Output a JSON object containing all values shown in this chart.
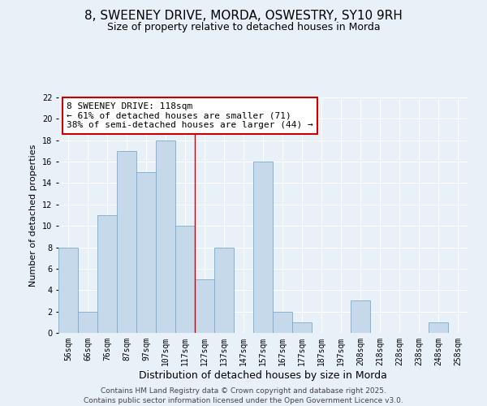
{
  "title1": "8, SWEENEY DRIVE, MORDA, OSWESTRY, SY10 9RH",
  "title2": "Size of property relative to detached houses in Morda",
  "xlabel": "Distribution of detached houses by size in Morda",
  "ylabel": "Number of detached properties",
  "bin_labels": [
    "56sqm",
    "66sqm",
    "76sqm",
    "87sqm",
    "97sqm",
    "107sqm",
    "117sqm",
    "127sqm",
    "137sqm",
    "147sqm",
    "157sqm",
    "167sqm",
    "177sqm",
    "187sqm",
    "197sqm",
    "208sqm",
    "218sqm",
    "228sqm",
    "238sqm",
    "248sqm",
    "258sqm"
  ],
  "bar_values": [
    8,
    2,
    11,
    17,
    15,
    18,
    10,
    5,
    8,
    0,
    16,
    2,
    1,
    0,
    0,
    3,
    0,
    0,
    0,
    1,
    0
  ],
  "bar_color": "#c5d9ea",
  "bar_edge_color": "#7aaac8",
  "highlight_bar_index": 6,
  "annotation_text": "8 SWEENEY DRIVE: 118sqm\n← 61% of detached houses are smaller (71)\n38% of semi-detached houses are larger (44) →",
  "annotation_box_color": "#ffffff",
  "annotation_box_edge_color": "#cc0000",
  "marker_line_color": "#cc0000",
  "ylim": [
    0,
    22
  ],
  "yticks": [
    0,
    2,
    4,
    6,
    8,
    10,
    12,
    14,
    16,
    18,
    20,
    22
  ],
  "bg_color": "#e8f0f8",
  "grid_color": "#ffffff",
  "footer_text": "Contains HM Land Registry data © Crown copyright and database right 2025.\nContains public sector information licensed under the Open Government Licence v3.0.",
  "title1_fontsize": 11,
  "title2_fontsize": 9,
  "xlabel_fontsize": 9,
  "ylabel_fontsize": 8,
  "tick_fontsize": 7,
  "annotation_fontsize": 8,
  "footer_fontsize": 6.5
}
